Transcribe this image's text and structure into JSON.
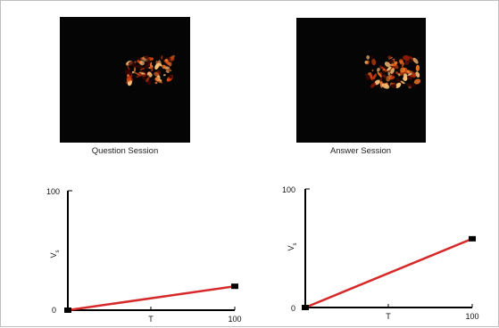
{
  "images": {
    "question_caption": "Question Session",
    "answer_caption": "Answer Session",
    "heat_colors": [
      "#3a0600",
      "#8a1a06",
      "#d2400e",
      "#f27a2a",
      "#ffc37a"
    ]
  },
  "chart_data": [
    {
      "type": "line",
      "title": "",
      "xlabel": "",
      "ylabel": "V",
      "ylabel_sub": "s",
      "xlim": [
        0,
        100
      ],
      "ylim": [
        0,
        100
      ],
      "y_tick_labels": [
        "0",
        "100"
      ],
      "x_tick_labels": [
        "T",
        "100"
      ],
      "x_tick_positions": [
        50,
        100
      ],
      "series": [
        {
          "x": [
            0,
            100
          ],
          "y": [
            0,
            20
          ],
          "color": "#d62a2a"
        }
      ]
    },
    {
      "type": "line",
      "title": "",
      "xlabel": "",
      "ylabel": "V",
      "ylabel_sub": "s",
      "xlim": [
        0,
        100
      ],
      "ylim": [
        0,
        100
      ],
      "y_tick_labels": [
        "0",
        "100"
      ],
      "x_tick_labels": [
        "T",
        "100"
      ],
      "x_tick_positions": [
        50,
        100
      ],
      "series": [
        {
          "x": [
            0,
            100
          ],
          "y": [
            0,
            58
          ],
          "color": "#d62a2a"
        }
      ]
    }
  ]
}
